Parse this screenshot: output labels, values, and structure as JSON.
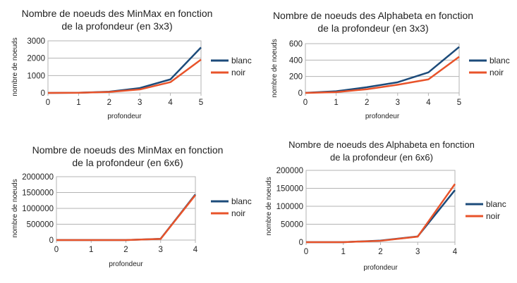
{
  "chart_data": [
    {
      "type": "line",
      "title_lines": [
        "Nombre de noeuds des MinMax en fonction",
        "de la profondeur (en 3x3)"
      ],
      "xlabel": "profondeur",
      "ylabel": "nombre de noeuds",
      "x": [
        0,
        1,
        2,
        3,
        4,
        5
      ],
      "xlim": [
        0,
        5
      ],
      "ylim": [
        0,
        3000
      ],
      "yticks": [
        "0",
        "1000",
        "2000",
        "3000"
      ],
      "legend_position": "right",
      "grid": true,
      "series": [
        {
          "name": "blanc",
          "color": "#1c4b7a",
          "values": [
            1,
            10,
            70,
            280,
            780,
            2620
          ]
        },
        {
          "name": "noir",
          "color": "#e8532a",
          "values": [
            0,
            8,
            55,
            200,
            620,
            1920
          ]
        }
      ]
    },
    {
      "type": "line",
      "title_lines": [
        "Nombre de noeuds des Alphabeta en fonction",
        "de la profondeur (en 3x3)"
      ],
      "xlabel": "profondeur",
      "ylabel": "nombre de noeuds",
      "x": [
        0,
        1,
        2,
        3,
        4,
        5
      ],
      "xlim": [
        0,
        5
      ],
      "ylim": [
        0,
        600
      ],
      "yticks": [
        "0",
        "200",
        "400",
        "600"
      ],
      "legend_position": "right",
      "grid": true,
      "series": [
        {
          "name": "blanc",
          "color": "#1c4b7a",
          "values": [
            1,
            20,
            70,
            130,
            250,
            560
          ]
        },
        {
          "name": "noir",
          "color": "#e8532a",
          "values": [
            0,
            10,
            45,
            100,
            165,
            440
          ]
        }
      ]
    },
    {
      "type": "line",
      "title_lines": [
        "Nombre de noeuds des MinMax en fonction",
        "de la profondeur (en 6x6)"
      ],
      "xlabel": "profondeur",
      "ylabel": "nombre de noeuds",
      "x": [
        0,
        1,
        2,
        3,
        4
      ],
      "xlim": [
        0,
        4
      ],
      "ylim": [
        0,
        2000000
      ],
      "yticks": [
        "0",
        "500000",
        "1000000",
        "1500000",
        "2000000"
      ],
      "legend_position": "right",
      "grid": true,
      "series": [
        {
          "name": "blanc",
          "color": "#1c4b7a",
          "values": [
            1,
            36,
            1260,
            40000,
            1440000
          ]
        },
        {
          "name": "noir",
          "color": "#e8532a",
          "values": [
            0,
            30,
            1100,
            36000,
            1420000
          ]
        }
      ]
    },
    {
      "type": "line",
      "title_lines": [
        "Nombre de noeuds des Alphabeta en fonction",
        "de la profondeur (en 6x6)"
      ],
      "xlabel": "profondeur",
      "ylabel": "nombre de noeuds",
      "x": [
        0,
        1,
        2,
        3,
        4
      ],
      "xlim": [
        0,
        4
      ],
      "ylim": [
        0,
        200000
      ],
      "yticks": [
        "0",
        "50000",
        "100000",
        "150000",
        "200000"
      ],
      "legend_position": "right",
      "grid": true,
      "series": [
        {
          "name": "blanc",
          "color": "#1c4b7a",
          "values": [
            1,
            36,
            4500,
            16000,
            145000
          ]
        },
        {
          "name": "noir",
          "color": "#e8532a",
          "values": [
            0,
            30,
            3800,
            15500,
            162000
          ]
        }
      ]
    }
  ]
}
